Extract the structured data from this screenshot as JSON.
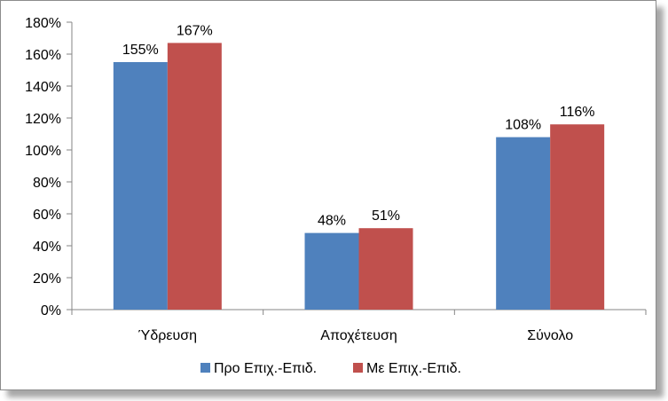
{
  "chart_data": {
    "type": "bar",
    "categories": [
      "Ύδρευση",
      "Αποχέτευση",
      "Σύνολο"
    ],
    "series": [
      {
        "name": "Προ Επιχ.-Επιδ.",
        "values": [
          155,
          48,
          108
        ],
        "labels": [
          "155%",
          "48%",
          "108%"
        ],
        "color": "#4f81bd"
      },
      {
        "name": "Με Επιχ.-Επιδ.",
        "values": [
          167,
          51,
          116
        ],
        "labels": [
          "167%",
          "51%",
          "116%"
        ],
        "color": "#c0504d"
      }
    ],
    "ylim": [
      0,
      180
    ],
    "yticks": [
      "0%",
      "20%",
      "40%",
      "60%",
      "80%",
      "100%",
      "120%",
      "140%",
      "160%",
      "180%"
    ],
    "grid": false,
    "legend_position": "bottom"
  }
}
